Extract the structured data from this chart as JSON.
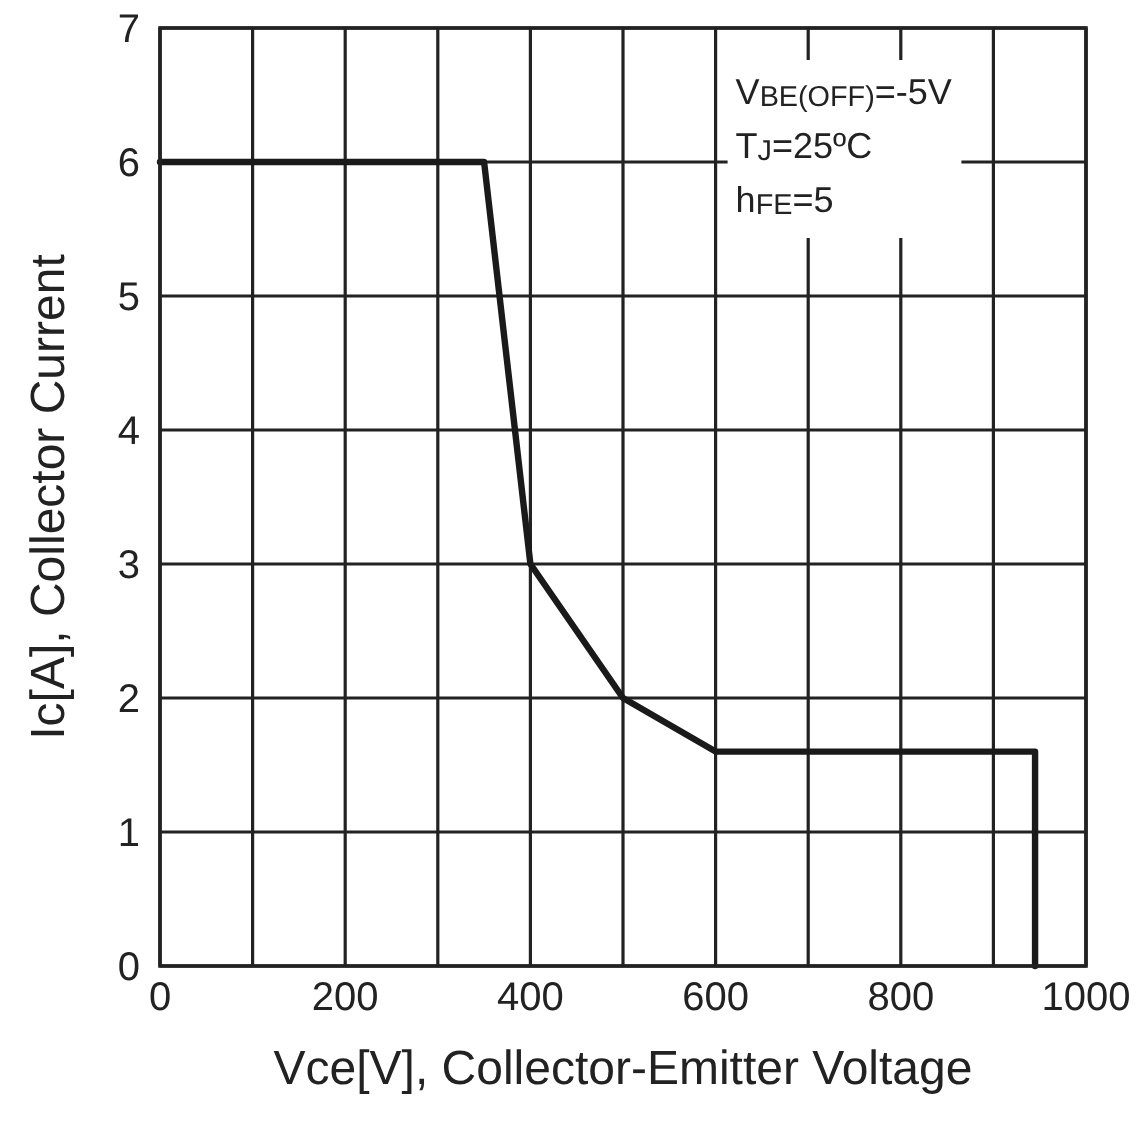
{
  "chart_data": {
    "type": "line",
    "xlabel": "Vce[V], Collector-Emitter Voltage",
    "ylabel": "Ic[A], Collector Current",
    "x": [
      0,
      350,
      400,
      500,
      600,
      945,
      945
    ],
    "series": [
      {
        "color": "#1a1a1a",
        "values": [
          6,
          6,
          3,
          2,
          1.6,
          1.6,
          0
        ]
      }
    ],
    "xlim": [
      0,
      1000
    ],
    "xticks": [
      0,
      {
        "value": 100,
        "label": null
      },
      200,
      {
        "value": 300,
        "label": null
      },
      400,
      {
        "value": 500,
        "label": null
      },
      600,
      {
        "value": 700,
        "label": null
      },
      800,
      {
        "value": 900,
        "label": null
      },
      1000
    ],
    "ylim": [
      0,
      7
    ],
    "yticks": [
      0,
      1,
      2,
      3,
      4,
      5,
      6,
      7
    ],
    "grid": true,
    "marker": "none",
    "line_style": "solid",
    "annotations": [
      "V$_{BE(OFF)}$=-5V",
      "T$_{J}$=25ºC",
      "h$_{FE}$=5"
    ]
  }
}
